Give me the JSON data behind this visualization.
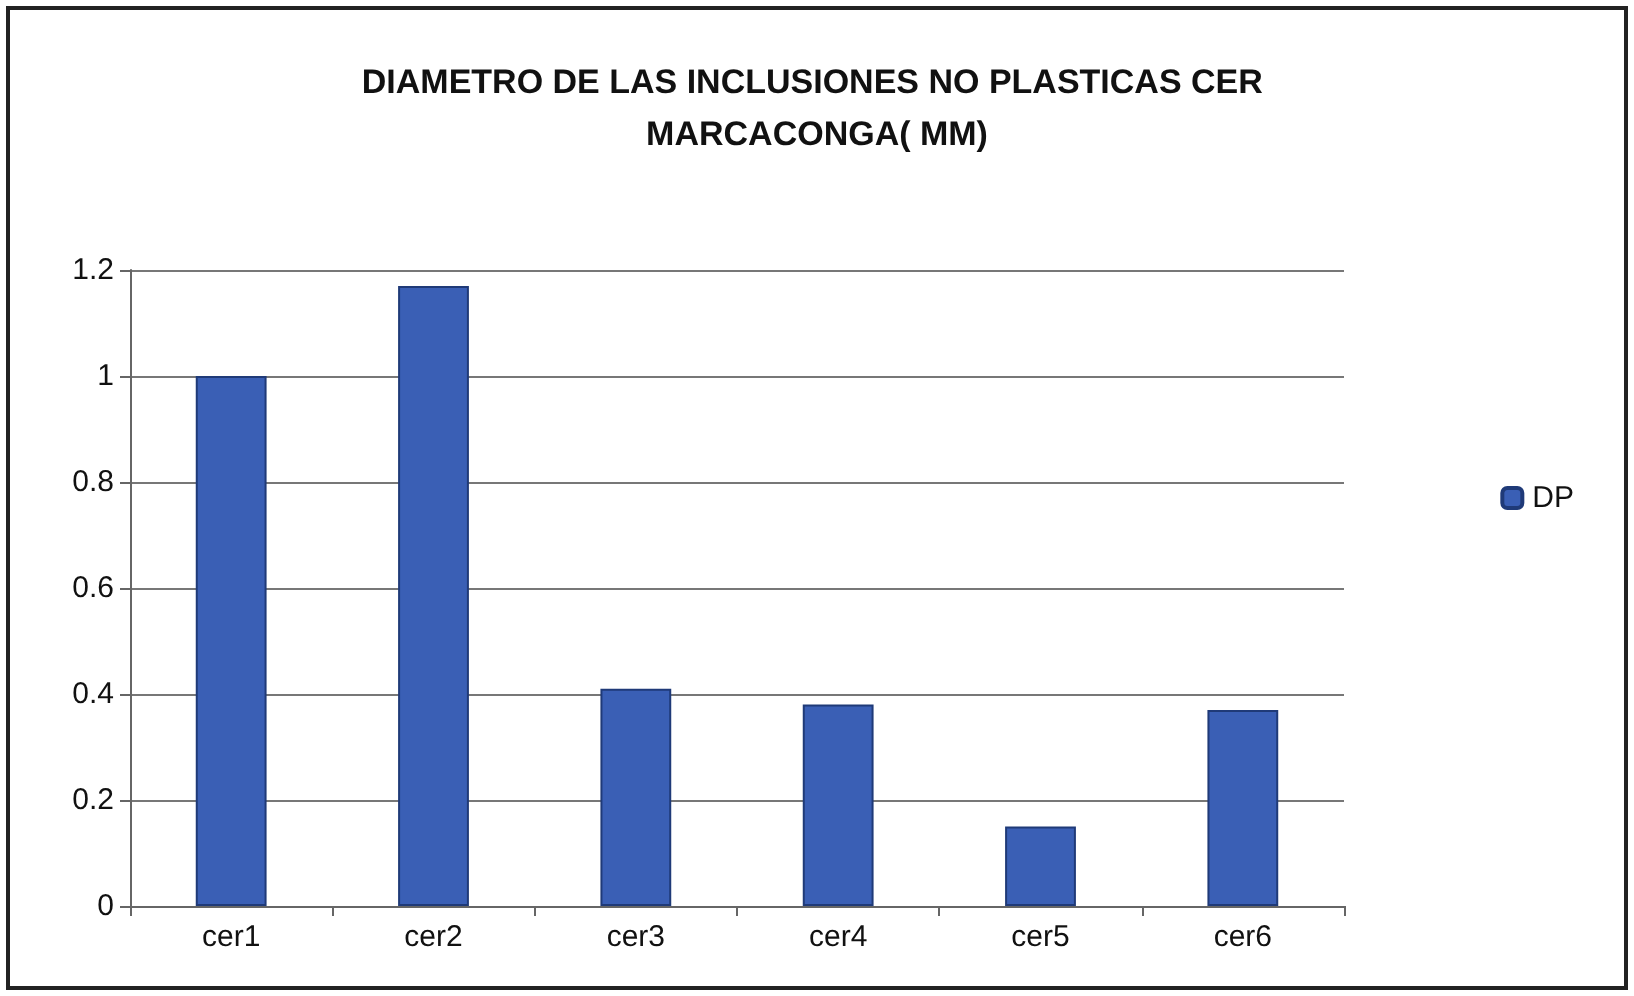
{
  "chart_data": {
    "type": "bar",
    "title": "DIAMETRO DE LAS INCLUSIONES NO PLASTICAS CER MARCACONGA( MM)",
    "categories": [
      "cer1",
      "cer2",
      "cer3",
      "cer4",
      "cer5",
      "cer6"
    ],
    "series": [
      {
        "name": "DP",
        "color": "#3a5fb5",
        "values": [
          1.0,
          1.17,
          0.41,
          0.38,
          0.15,
          0.37
        ]
      }
    ],
    "ylim": [
      0,
      1.2
    ],
    "yticks": [
      0,
      0.2,
      0.4,
      0.6,
      0.8,
      1,
      1.2
    ],
    "grid": "y",
    "legend": "right"
  }
}
